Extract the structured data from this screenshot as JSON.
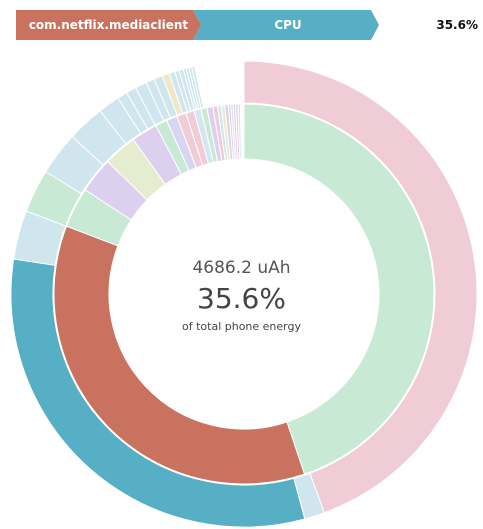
{
  "breadcrumb": {
    "app": "com.netflix.mediaclient",
    "resource": "CPU",
    "percent": "35.6%",
    "app_color": "#c8725f",
    "resource_color": "#56afc4"
  },
  "center": {
    "energy": "4686.2 uAh",
    "percent": "35.6%",
    "caption": "of total phone energy"
  },
  "chart_data": {
    "type": "sunburst",
    "outer_ring": {
      "colors_order": "clockwise from top",
      "slices": [
        {
          "value": 44.4,
          "color": "#efccd6"
        },
        {
          "value": 1.4,
          "color": "#cfe6ee"
        },
        {
          "value": 31.6,
          "color": "#56afc4"
        },
        {
          "value": 3.4,
          "color": "#cfe6ee"
        },
        {
          "value": 3.0,
          "color": "#c8ead4"
        },
        {
          "value": 3.0,
          "color": "#cfe6ee"
        },
        {
          "value": 2.6,
          "color": "#cfe6ee"
        },
        {
          "value": 1.5,
          "color": "#cfe6ee"
        },
        {
          "value": 0.7,
          "color": "#cfe6ee"
        },
        {
          "value": 0.7,
          "color": "#cfe6ee"
        },
        {
          "value": 0.8,
          "color": "#cfe6ee"
        },
        {
          "value": 0.6,
          "color": "#cfe6ee"
        },
        {
          "value": 0.6,
          "color": "#cfe6ee"
        },
        {
          "value": 0.5,
          "color": "#eee8c8"
        },
        {
          "value": 0.4,
          "color": "#cfe6ee"
        },
        {
          "value": 0.3,
          "color": "#cfe6ee"
        },
        {
          "value": 0.3,
          "color": "#cfe6ee"
        },
        {
          "value": 0.2,
          "color": "#cfe6ee"
        },
        {
          "value": 0.2,
          "color": "#cfe6ee"
        },
        {
          "value": 0.2,
          "color": "#cfe6ee"
        },
        {
          "value": 0.2,
          "color": "#cfe6ee"
        },
        {
          "value": 3.4,
          "color": "#ffffff"
        }
      ]
    },
    "inner_ring": {
      "slices": [
        {
          "value": 44.4,
          "color": "#c8ead4"
        },
        {
          "value": 35.6,
          "color": "#c8725f"
        },
        {
          "value": 3.4,
          "color": "#c8ead4"
        },
        {
          "value": 3.0,
          "color": "#dcd0ee"
        },
        {
          "value": 2.8,
          "color": "#e6ecd0"
        },
        {
          "value": 2.2,
          "color": "#dcd0ee"
        },
        {
          "value": 1.0,
          "color": "#c8ead4"
        },
        {
          "value": 0.9,
          "color": "#d6d6f0"
        },
        {
          "value": 0.8,
          "color": "#efccd6"
        },
        {
          "value": 0.7,
          "color": "#efccd6"
        },
        {
          "value": 0.6,
          "color": "#d6e6f0"
        },
        {
          "value": 0.5,
          "color": "#c8ead4"
        },
        {
          "value": 0.5,
          "color": "#dcd0ee"
        },
        {
          "value": 0.4,
          "color": "#efccd6"
        },
        {
          "value": 0.3,
          "color": "#cfe6ee"
        },
        {
          "value": 0.3,
          "color": "#e6ecd0"
        },
        {
          "value": 0.3,
          "color": "#dcd0ee"
        },
        {
          "value": 0.2,
          "color": "#efccd6"
        },
        {
          "value": 0.2,
          "color": "#cfe6ee"
        },
        {
          "value": 0.2,
          "color": "#dcd0ee"
        },
        {
          "value": 0.2,
          "color": "#efccd6"
        },
        {
          "value": 0.2,
          "color": "#cfe6ee"
        },
        {
          "value": 0.1,
          "color": "#efccd6"
        },
        {
          "value": 0.1,
          "color": "#cfe6ee"
        },
        {
          "value": 0.1,
          "color": "#dcd0ee"
        }
      ]
    }
  }
}
